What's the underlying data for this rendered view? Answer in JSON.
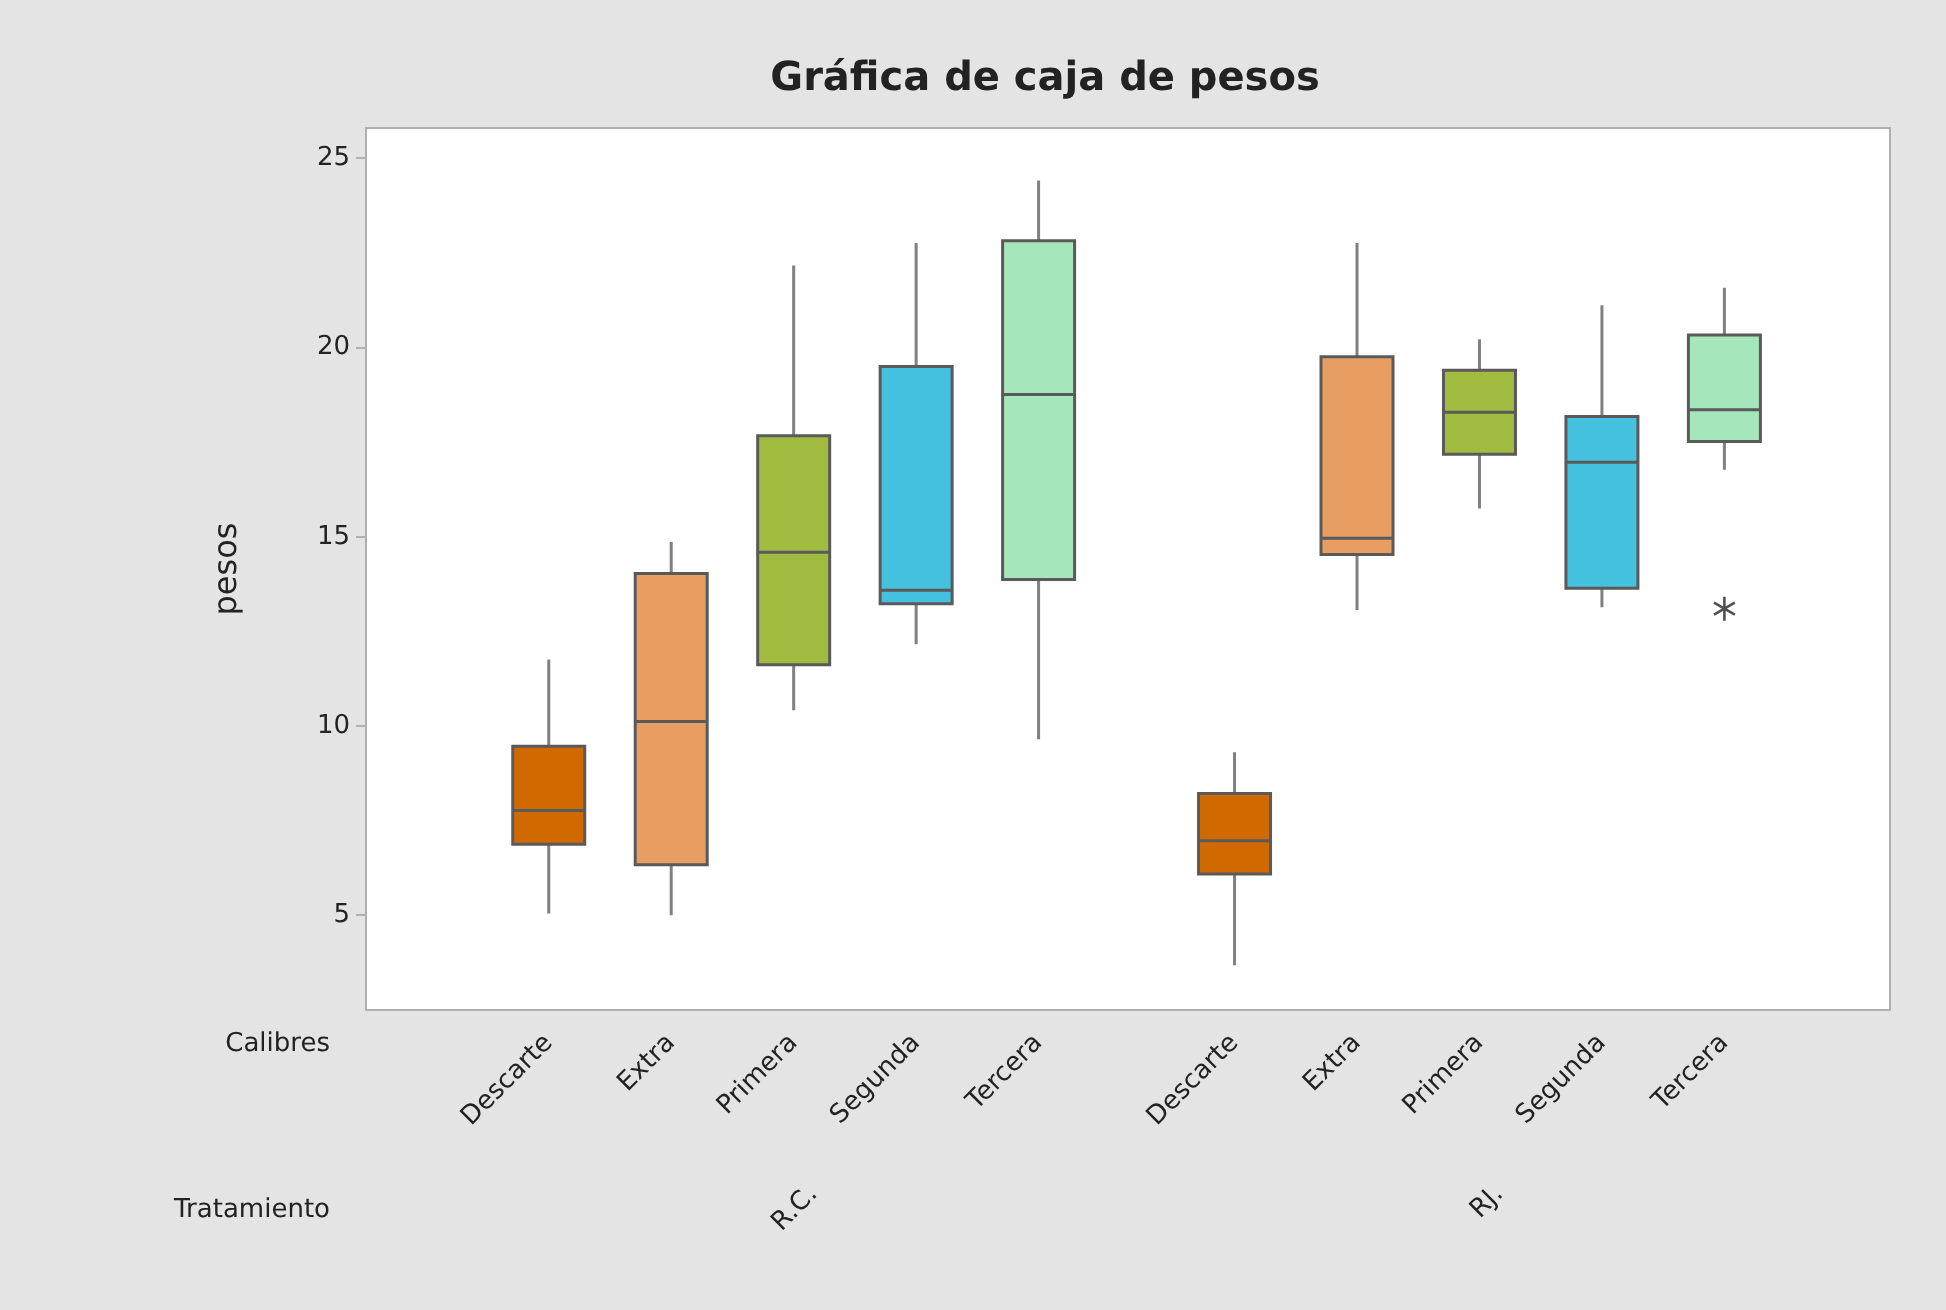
{
  "chart_data": {
    "type": "box",
    "title": "Gráfica de caja de pesos",
    "ylabel": "pesos",
    "categories": [
      "Descarte",
      "Extra",
      "Primera",
      "Segunda",
      "Tercera",
      "Descarte",
      "Extra",
      "Primera",
      "Segunda",
      "Tercera"
    ],
    "colors": [
      "#d06a00",
      "#e89e63",
      "#a0bb40",
      "#45c1e0",
      "#a6e6bb",
      "#d06a00",
      "#e89e63",
      "#a0bb40",
      "#45c1e0",
      "#a6e6bb"
    ],
    "boxes": [
      {
        "low": 5.05,
        "q1": 6.88,
        "median": 7.77,
        "q3": 9.47,
        "high": 11.76
      },
      {
        "low": 5.0,
        "q1": 6.34,
        "median": 10.12,
        "q3": 14.03,
        "high": 14.86
      },
      {
        "low": 10.42,
        "q1": 11.62,
        "median": 14.59,
        "q3": 17.67,
        "high": 22.17
      },
      {
        "low": 12.16,
        "q1": 13.23,
        "median": 13.59,
        "q3": 19.5,
        "high": 22.76
      },
      {
        "low": 9.65,
        "q1": 13.87,
        "median": 18.76,
        "q3": 22.82,
        "high": 24.41
      },
      {
        "low": 3.68,
        "q1": 6.09,
        "median": 6.97,
        "q3": 8.22,
        "high": 9.31
      },
      {
        "low": 13.07,
        "q1": 14.53,
        "median": 14.96,
        "q3": 19.76,
        "high": 22.76
      },
      {
        "low": 15.75,
        "q1": 17.18,
        "median": 18.29,
        "q3": 19.4,
        "high": 20.22
      },
      {
        "low": 13.14,
        "q1": 13.64,
        "median": 16.97,
        "q3": 18.18,
        "high": 21.12
      },
      {
        "low": 16.77,
        "q1": 17.52,
        "median": 18.36,
        "q3": 20.33,
        "high": 21.58,
        "outliers": [
          13.1
        ]
      }
    ],
    "ylim": [
      2.5,
      25.8
    ],
    "yticks": [
      5,
      10,
      15,
      20,
      25
    ],
    "grid": false,
    "legend": false,
    "annotations": [
      "Calibres",
      "Tratamiento",
      "R.C.",
      "RJ."
    ]
  }
}
